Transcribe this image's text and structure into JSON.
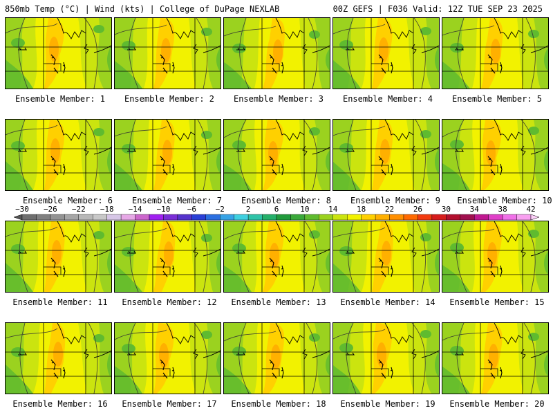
{
  "header": {
    "left": "850mb Temp (°C) | Wind (kts) | College of DuPage NEXLAB",
    "right": "00Z GEFS | F036 Valid: 12Z TUE SEP 23 2025"
  },
  "panels": [
    {
      "label": "Ensemble Member: 1",
      "label_align": "center"
    },
    {
      "label": "Ensemble Member: 2",
      "label_align": "center"
    },
    {
      "label": "Ensemble Member: 3",
      "label_align": "center"
    },
    {
      "label": "Ensemble Member: 4",
      "label_align": "center"
    },
    {
      "label": "Ensemble Member: 5",
      "label_align": "center"
    },
    {
      "label": "Ensemble Member: 6",
      "label_align": "right"
    },
    {
      "label": "Ensemble Member: 7",
      "label_align": "right"
    },
    {
      "label": "Ensemble Member: 8",
      "label_align": "right"
    },
    {
      "label": "Ensemble Member: 9",
      "label_align": "right"
    },
    {
      "label": "Ensemble Member: 10",
      "label_align": "right"
    },
    {
      "label": "Ensemble Member: 11",
      "label_align": "center"
    },
    {
      "label": "Ensemble Member: 12",
      "label_align": "center"
    },
    {
      "label": "Ensemble Member: 13",
      "label_align": "center"
    },
    {
      "label": "Ensemble Member: 14",
      "label_align": "center"
    },
    {
      "label": "Ensemble Member: 15",
      "label_align": "center"
    },
    {
      "label": "Ensemble Member: 16",
      "label_align": "center"
    },
    {
      "label": "Ensemble Member: 17",
      "label_align": "center"
    },
    {
      "label": "Ensemble Member: 18",
      "label_align": "center"
    },
    {
      "label": "Ensemble Member: 19",
      "label_align": "center"
    },
    {
      "label": "Ensemble Member: 20",
      "label_align": "center"
    }
  ],
  "colorbar": {
    "min": -32,
    "max": 44,
    "step": 2,
    "tick_labels": [
      "-30",
      "-26",
      "-22",
      "-18",
      "-14",
      "-10",
      "-6",
      "-2",
      "2",
      "6",
      "10",
      "14",
      "18",
      "22",
      "26",
      "30",
      "34",
      "38",
      "42"
    ],
    "colors": [
      "#555555",
      "#6e6e6e",
      "#808080",
      "#939393",
      "#a6a6a6",
      "#b8b8b8",
      "#c8c8c8",
      "#d6c6e6",
      "#e6a8e6",
      "#cc66cc",
      "#a020f0",
      "#7a2ed6",
      "#5533cc",
      "#2a3fd6",
      "#2b6fe0",
      "#37a3e6",
      "#3fd0e0",
      "#2fc3a8",
      "#25b06a",
      "#219a3b",
      "#3aa83a",
      "#5fbb2f",
      "#9bd21f",
      "#cbe40f",
      "#f2f200",
      "#ffd000",
      "#ffb000",
      "#ff8f00",
      "#ff6a00",
      "#f23a10",
      "#d61c1c",
      "#b20f2e",
      "#a0104e",
      "#c01890",
      "#e040c8",
      "#f070e8",
      "#f8a0f0",
      "#fcd0f8"
    ],
    "map_field_colors": {
      "cool": "#5fbb2f",
      "mild": "#9bd21f",
      "warm": "#cbe40f",
      "warmer": "#f2f200",
      "hot": "#ffd000",
      "hottest": "#ffb000"
    }
  }
}
